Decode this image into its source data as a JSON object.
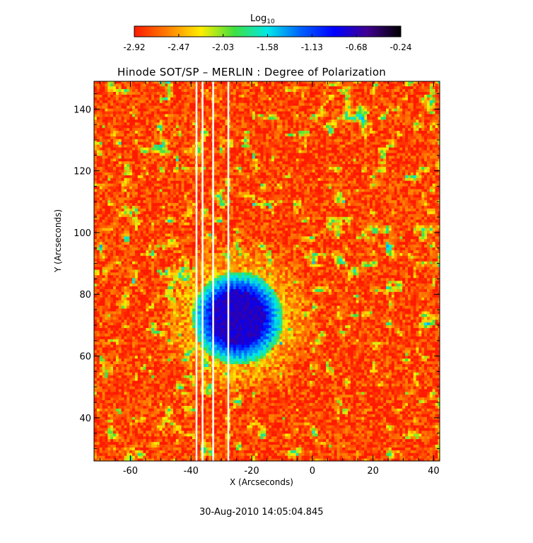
{
  "chart_data": {
    "type": "heatmap",
    "title": "Hinode SOT/SP – MERLIN : Degree of Polarization",
    "xlabel": "X (Arcseconds)",
    "ylabel": "Y (Arcseconds)",
    "xlim": [
      -72,
      42
    ],
    "ylim": [
      26,
      149
    ],
    "xticks": [
      -60,
      -40,
      -20,
      0,
      20,
      40
    ],
    "yticks": [
      40,
      60,
      80,
      100,
      120,
      140
    ],
    "colorbar": {
      "label": "Log",
      "label_subscript": "10",
      "ticks": [
        "-2.92",
        "-2.47",
        "-2.03",
        "-1.58",
        "-1.13",
        "-0.68",
        "-0.24"
      ],
      "min": -2.92,
      "max": -0.24,
      "colors": [
        "#ff1a00",
        "#ff8000",
        "#ffee00",
        "#40e040",
        "#00e8e8",
        "#0060ff",
        "#0000ff",
        "#400090",
        "#000000"
      ]
    },
    "features": {
      "sunspot_center": [
        -25,
        72
      ],
      "sunspot_umbra_radius": 9,
      "sunspot_penumbra_radius": 15,
      "background_log_value": -2.8,
      "gap_columns_x": [
        -38.5,
        -36.5,
        -33,
        -28
      ]
    },
    "footer": "30-Aug-2010 14:05:04.845"
  }
}
